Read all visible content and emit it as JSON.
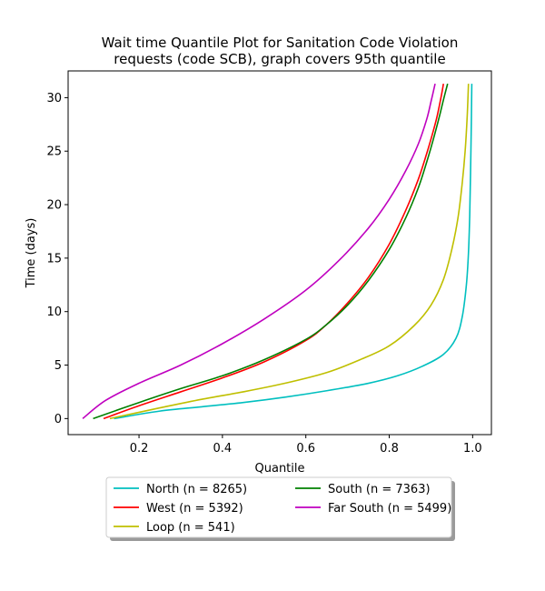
{
  "chart_data": {
    "type": "line",
    "title": [
      "Wait time Quantile Plot for Sanitation Code Violation",
      "requests (code SCB), graph covers 95th quantile"
    ],
    "xlabel": "Quantile",
    "ylabel": "Time (days)",
    "xlim": [
      0.03,
      1.045
    ],
    "ylim": [
      -1.5,
      32.5
    ],
    "xticks": [
      0.2,
      0.4,
      0.6,
      0.8,
      1.0
    ],
    "xtick_labels": [
      "0.2",
      "0.4",
      "0.6",
      "0.8",
      "1.0"
    ],
    "yticks": [
      0,
      5,
      10,
      15,
      20,
      25,
      30
    ],
    "ytick_labels": [
      "0",
      "5",
      "10",
      "15",
      "20",
      "25",
      "30"
    ],
    "grid": false,
    "legend": {
      "placement": "below",
      "columns": 2
    },
    "series": [
      {
        "name": "North (n = 8265)",
        "color": "#00bfbf",
        "x": [
          0.14,
          0.25,
          0.35,
          0.45,
          0.55,
          0.65,
          0.75,
          0.82,
          0.88,
          0.93,
          0.96,
          0.975,
          0.985,
          0.99,
          0.993,
          0.995,
          0.997,
          0.998
        ],
        "y": [
          0,
          0.7,
          1.1,
          1.5,
          2.0,
          2.6,
          3.3,
          4.0,
          4.9,
          6.0,
          7.5,
          9.5,
          12.5,
          15.5,
          19,
          23,
          28,
          31.3
        ]
      },
      {
        "name": "West (n = 5392)",
        "color": "#ff0000",
        "x": [
          0.115,
          0.2,
          0.3,
          0.4,
          0.5,
          0.6,
          0.65,
          0.7,
          0.75,
          0.8,
          0.84,
          0.87,
          0.89,
          0.905,
          0.915,
          0.925,
          0.93
        ],
        "y": [
          0,
          1.2,
          2.5,
          3.8,
          5.3,
          7.3,
          8.8,
          10.8,
          13.2,
          16.3,
          19.5,
          22.4,
          24.8,
          26.8,
          28.3,
          30.2,
          31.3
        ]
      },
      {
        "name": "Loop (n = 541)",
        "color": "#bfbf00",
        "x": [
          0.13,
          0.25,
          0.35,
          0.45,
          0.55,
          0.65,
          0.73,
          0.8,
          0.86,
          0.9,
          0.93,
          0.95,
          0.965,
          0.975,
          0.982,
          0.987,
          0.99
        ],
        "y": [
          0,
          1.0,
          1.8,
          2.5,
          3.3,
          4.3,
          5.5,
          6.8,
          8.7,
          10.6,
          13.0,
          15.8,
          18.8,
          22.0,
          25.0,
          28.3,
          31.3
        ]
      },
      {
        "name": "South (n = 7363)",
        "color": "#008000",
        "x": [
          0.09,
          0.2,
          0.3,
          0.4,
          0.5,
          0.6,
          0.65,
          0.7,
          0.75,
          0.8,
          0.84,
          0.87,
          0.89,
          0.905,
          0.92,
          0.93,
          0.94
        ],
        "y": [
          0,
          1.5,
          2.8,
          4.0,
          5.5,
          7.4,
          8.8,
          10.6,
          12.9,
          15.8,
          18.8,
          21.6,
          24.0,
          26.0,
          28.2,
          29.8,
          31.3
        ]
      },
      {
        "name": "Far South (n = 5499)",
        "color": "#bf00bf",
        "x": [
          0.065,
          0.12,
          0.2,
          0.3,
          0.4,
          0.5,
          0.6,
          0.68,
          0.75,
          0.8,
          0.84,
          0.87,
          0.89,
          0.9,
          0.91
        ],
        "y": [
          0,
          1.7,
          3.3,
          5.0,
          7.0,
          9.3,
          12.0,
          14.8,
          17.8,
          20.5,
          23.2,
          25.7,
          28.0,
          29.6,
          31.3
        ]
      }
    ]
  }
}
